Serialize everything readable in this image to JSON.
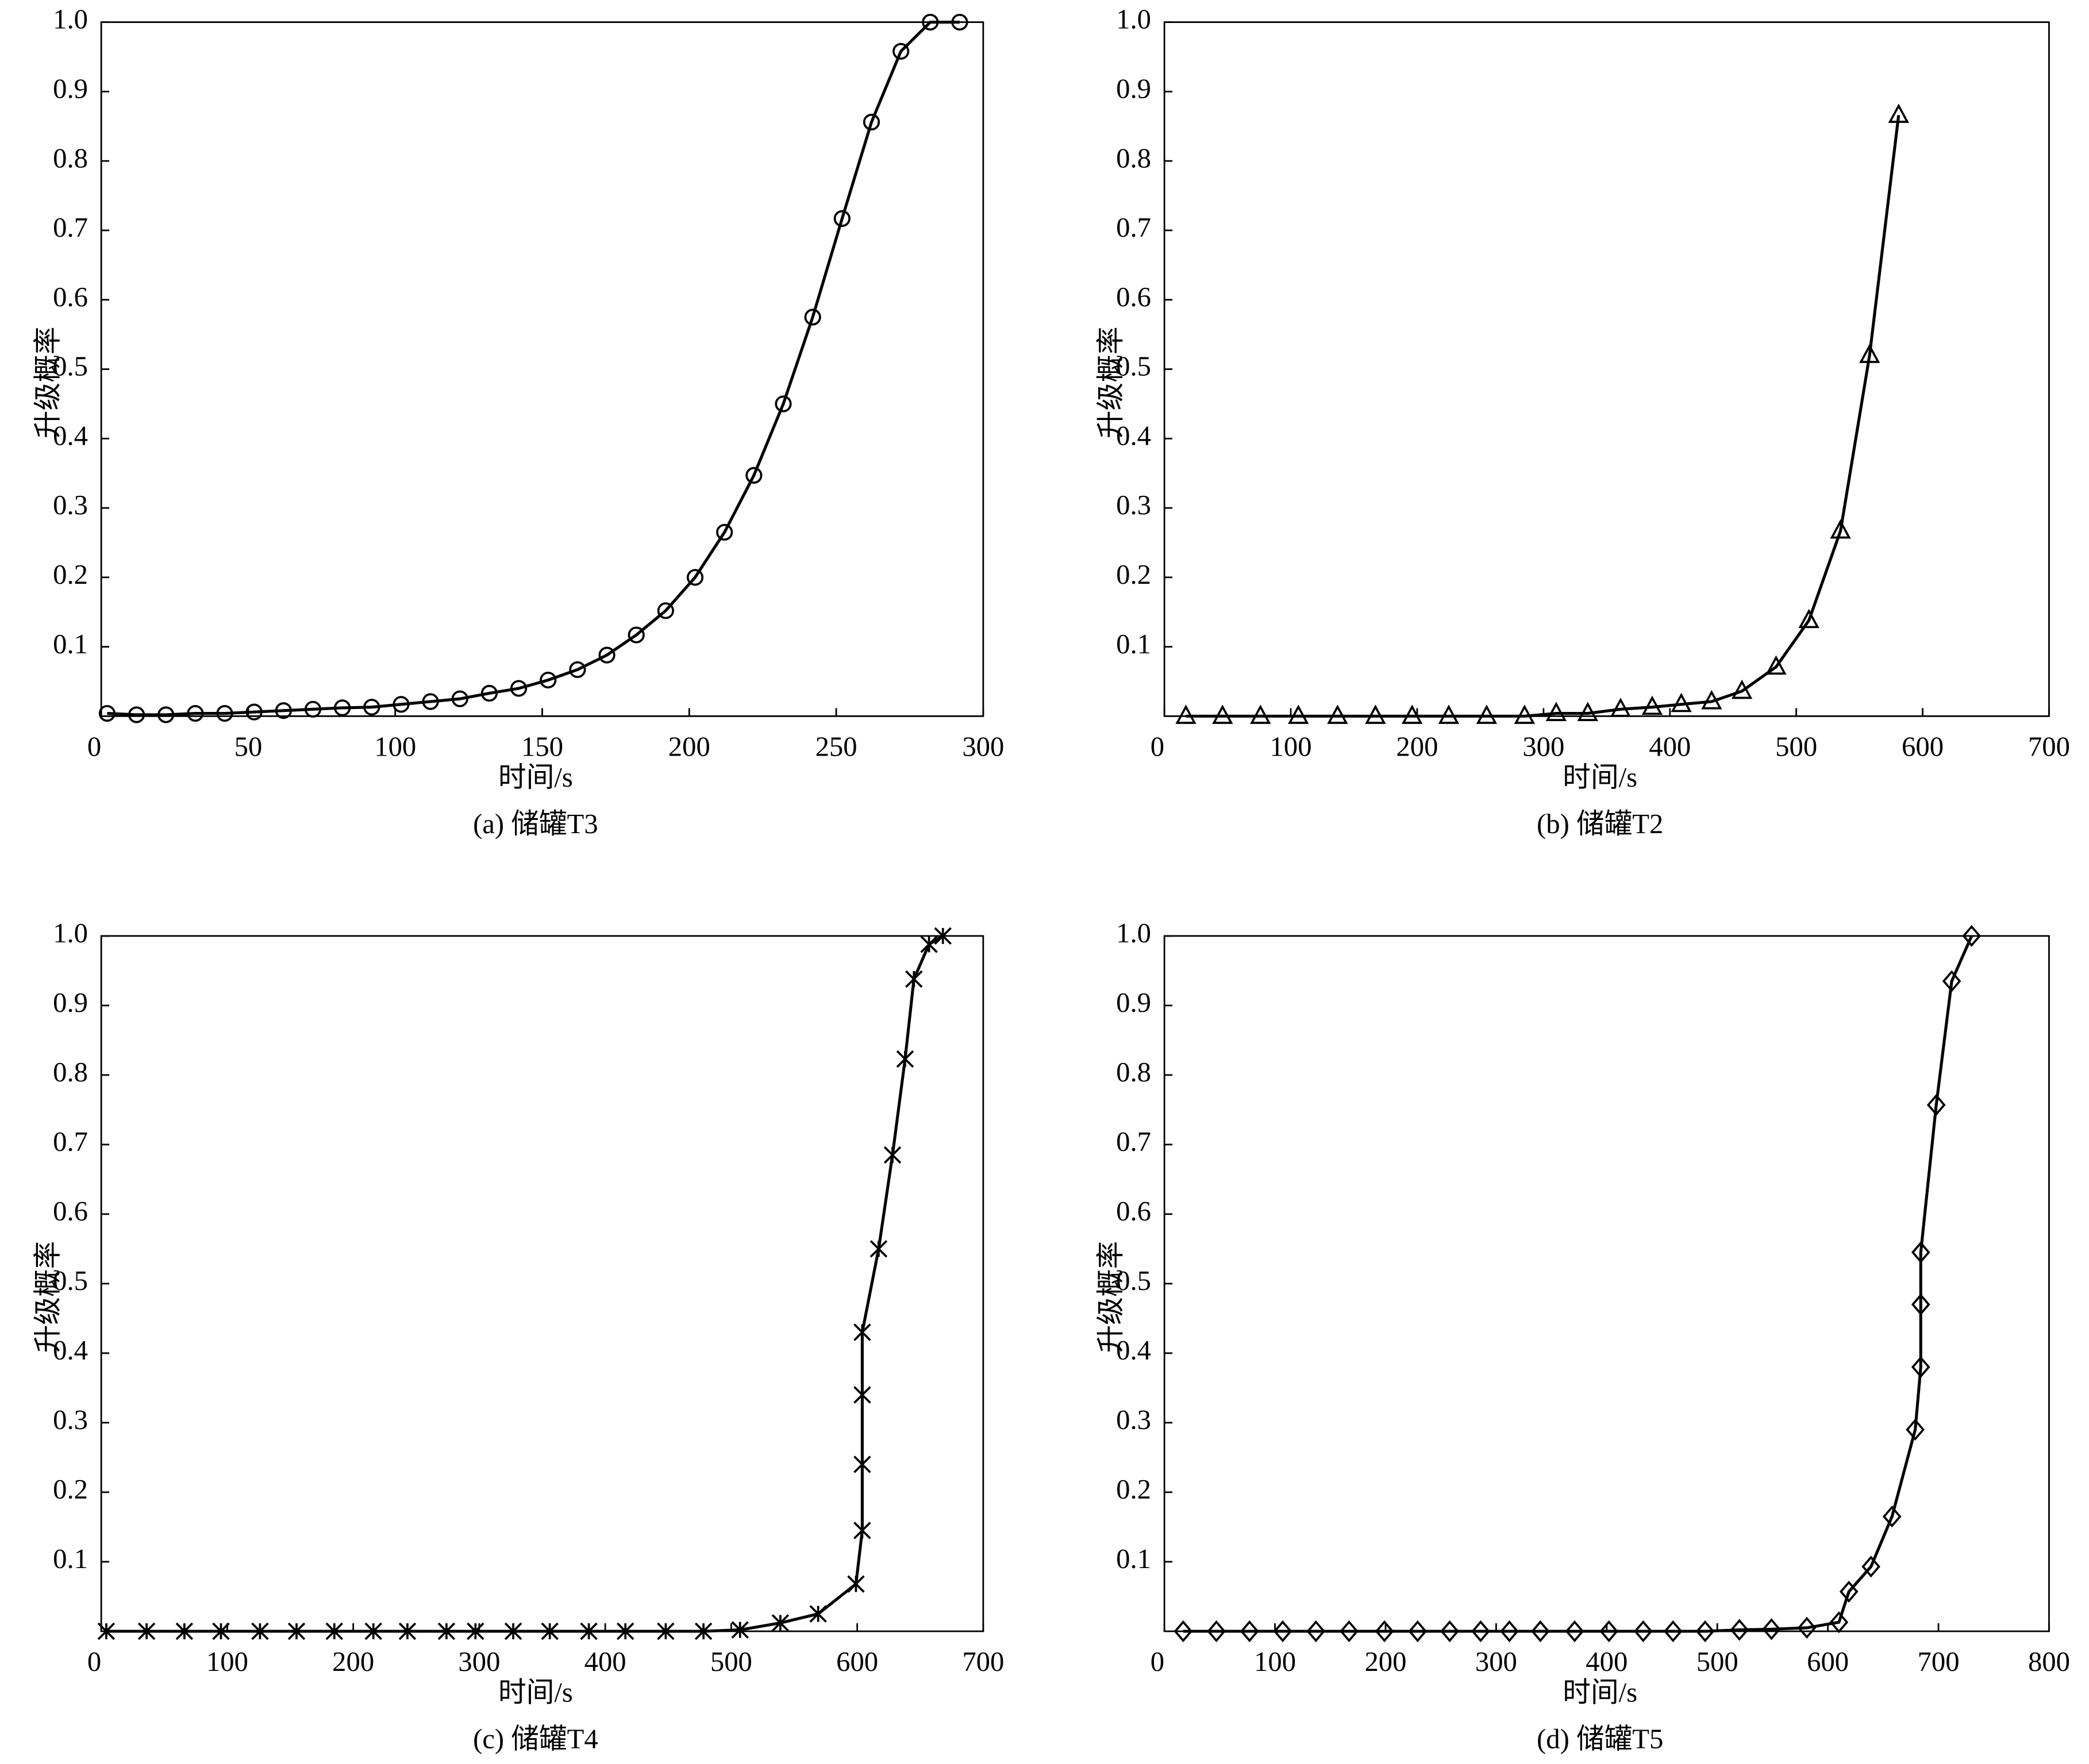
{
  "chart_data": [
    {
      "type": "line",
      "caption": "(a) 储罐T3",
      "xlabel": "时间/s",
      "ylabel": "升级概率",
      "x": [
        2,
        12,
        22,
        32,
        42,
        52,
        62,
        72,
        82,
        92,
        102,
        112,
        122,
        132,
        142,
        152,
        162,
        172,
        182,
        192,
        202,
        212,
        222,
        232,
        242,
        252,
        262,
        272,
        282,
        292
      ],
      "series": [
        {
          "color": "#000000",
          "marker": "circle",
          "values": [
            0.004,
            0.002,
            0.002,
            0.004,
            0.004,
            0.006,
            0.008,
            0.01,
            0.012,
            0.013,
            0.017,
            0.021,
            0.025,
            0.033,
            0.04,
            0.052,
            0.067,
            0.088,
            0.117,
            0.152,
            0.2,
            0.265,
            0.347,
            0.45,
            0.575,
            0.717,
            0.856,
            0.958,
            1.0,
            1.0
          ]
        }
      ],
      "xlim": [
        0,
        300
      ],
      "ylim": [
        0,
        1
      ],
      "xticks": [
        0,
        50,
        100,
        150,
        200,
        250,
        300
      ],
      "yticks": [
        0.1,
        0.2,
        0.3,
        0.4,
        0.5,
        0.6,
        0.7,
        0.8,
        0.9,
        {
          "value": 1,
          "label": "1.0"
        }
      ]
    },
    {
      "type": "line",
      "caption": "(b) 储罐T2",
      "xlabel": "时间/s",
      "ylabel": "升级概率",
      "x": [
        17,
        46,
        76,
        106,
        137,
        167,
        196,
        225,
        255,
        285,
        310,
        335,
        361,
        386,
        409,
        433,
        457,
        484,
        510,
        535,
        558,
        581
      ],
      "series": [
        {
          "color": "#000000",
          "marker": "triangle",
          "values": [
            0,
            0,
            0,
            0,
            0,
            0,
            0,
            0,
            0,
            0,
            0.004,
            0.004,
            0.01,
            0.013,
            0.017,
            0.021,
            0.036,
            0.071,
            0.138,
            0.267,
            0.52,
            0.866
          ]
        }
      ],
      "xlim": [
        0,
        700
      ],
      "ylim": [
        0,
        1
      ],
      "xticks": [
        0,
        100,
        200,
        300,
        400,
        500,
        600,
        700
      ],
      "yticks": [
        0.1,
        0.2,
        0.3,
        0.4,
        0.5,
        0.6,
        0.7,
        0.8,
        0.9,
        {
          "value": 1,
          "label": "1.0"
        }
      ]
    },
    {
      "type": "line",
      "caption": "(c) 储罐T4",
      "xlabel": "时间/s",
      "ylabel": "升级概率",
      "x": [
        4,
        36,
        66,
        95,
        126,
        155,
        185,
        216,
        243,
        274,
        297,
        327,
        356,
        387,
        416,
        448,
        478,
        507,
        539,
        569,
        599,
        604,
        604,
        604,
        604,
        617,
        628,
        638,
        645,
        657,
        668
      ],
      "series": [
        {
          "color": "#000000",
          "marker": "star",
          "values": [
            0,
            0,
            0,
            0,
            0,
            0,
            0,
            0,
            0,
            0,
            0,
            0,
            0,
            0,
            0,
            0,
            0,
            0.002,
            0.012,
            0.025,
            0.068,
            0.145,
            0.24,
            0.34,
            0.43,
            0.55,
            0.685,
            0.823,
            0.938,
            0.988,
            1.0
          ]
        }
      ],
      "xlim": [
        0,
        700
      ],
      "ylim": [
        0,
        1
      ],
      "xticks": [
        0,
        100,
        200,
        300,
        400,
        500,
        600,
        700
      ],
      "yticks": [
        0.1,
        0.2,
        0.3,
        0.4,
        0.5,
        0.6,
        0.7,
        0.8,
        0.9,
        {
          "value": 1,
          "label": "1.0"
        }
      ]
    },
    {
      "type": "line",
      "caption": "(d) 储罐T5",
      "xlabel": "时间/s",
      "ylabel": "升级概率",
      "x": [
        17,
        47,
        77,
        107,
        137,
        167,
        199,
        229,
        258,
        286,
        312,
        340,
        371,
        402,
        433,
        460,
        489,
        520,
        549,
        581,
        610,
        619,
        639,
        658,
        679,
        684,
        684,
        684,
        698,
        712,
        730
      ],
      "series": [
        {
          "color": "#000000",
          "marker": "diamond",
          "values": [
            0,
            0,
            0,
            0,
            0,
            0,
            0,
            0,
            0,
            0,
            0,
            0,
            0,
            0,
            0,
            0,
            0,
            0.002,
            0.003,
            0.005,
            0.013,
            0.057,
            0.093,
            0.165,
            0.29,
            0.38,
            0.47,
            0.545,
            0.757,
            0.935,
            1.0
          ]
        }
      ],
      "xlim": [
        0,
        800
      ],
      "ylim": [
        0,
        1
      ],
      "xticks": [
        0,
        100,
        200,
        300,
        400,
        500,
        600,
        700,
        800
      ],
      "yticks": [
        0.1,
        0.2,
        0.3,
        0.4,
        0.5,
        0.6,
        0.7,
        0.8,
        0.9,
        {
          "value": 1,
          "label": "1.0"
        }
      ]
    }
  ]
}
